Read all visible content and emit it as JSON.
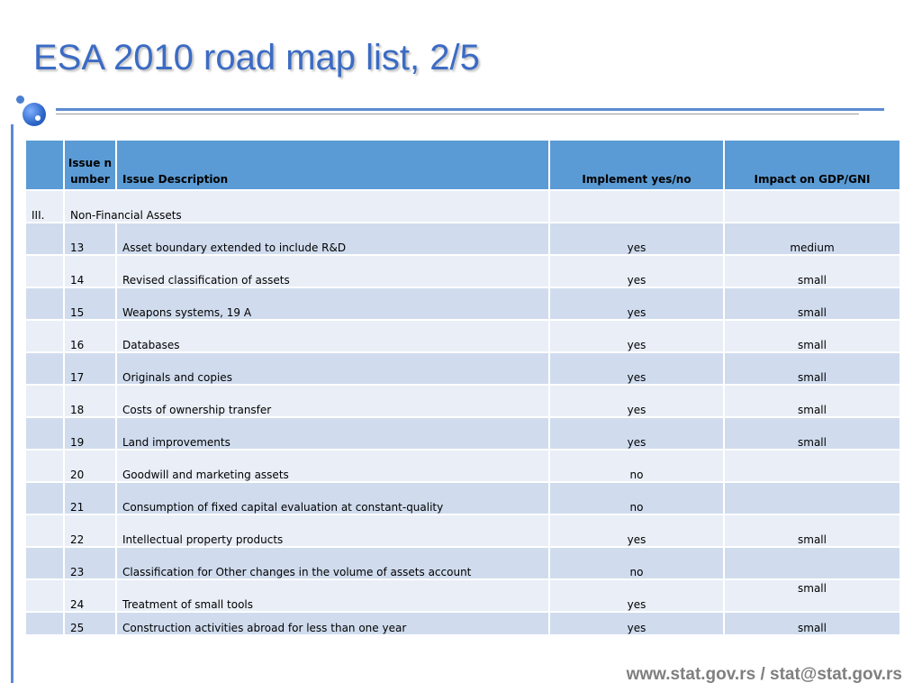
{
  "slide": {
    "title": "ESA 2010 road map list, 2/5",
    "footer": "www.stat.gov.rs / stat@stat.gov.rs"
  },
  "table": {
    "headers": {
      "section": "",
      "issue_number": "Issue number",
      "issue_description": "Issue Description",
      "implement": "Implement yes/no",
      "impact": "Impact on GDP/GNI"
    },
    "section_row": {
      "roman": "III.",
      "title": "Non-Financial Assets"
    },
    "rows": [
      {
        "number": "13",
        "description": "Asset boundary extended to include R&D",
        "implement": "yes",
        "impact": "medium"
      },
      {
        "number": "14",
        "description": "Revised classification of assets",
        "implement": "yes",
        "impact": "small"
      },
      {
        "number": "15",
        "description": "Weapons systems, 19 A",
        "implement": "yes",
        "impact": "small"
      },
      {
        "number": "16",
        "description": "Databases",
        "implement": "yes",
        "impact": "small"
      },
      {
        "number": "17",
        "description": "Originals and copies",
        "implement": "yes",
        "impact": "small"
      },
      {
        "number": "18",
        "description": "Costs of ownership transfer",
        "implement": "yes",
        "impact": "small"
      },
      {
        "number": "19",
        "description": "Land improvements",
        "implement": "yes",
        "impact": "small"
      },
      {
        "number": "20",
        "description": "Goodwill and marketing assets",
        "implement": "no",
        "impact": ""
      },
      {
        "number": "21",
        "description": "Consumption of fixed capital evaluation at constant-quality",
        "implement": "no",
        "impact": ""
      },
      {
        "number": "22",
        "description": "Intellectual property products",
        "implement": "yes",
        "impact": "small"
      },
      {
        "number": "23",
        "description": "Classification for Other changes in the volume of assets account",
        "implement": "no",
        "impact": ""
      },
      {
        "number": "24",
        "description": "Treatment of small tools",
        "implement": "yes",
        "impact": "small"
      },
      {
        "number": "25",
        "description": "Construction activities abroad for less than one year",
        "implement": "yes",
        "impact": "small"
      }
    ]
  },
  "colors": {
    "title": "#3b6bc4",
    "header_fill": "#5b9bd5",
    "row_light": "#e9eef7",
    "row_dark": "#d0dcee",
    "rule": "#5b8bd0",
    "footer": "#7f7f7f"
  }
}
